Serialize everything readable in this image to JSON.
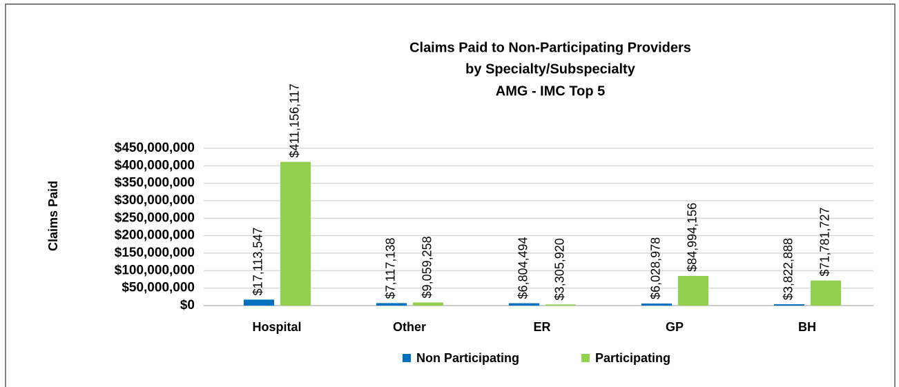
{
  "chart_data": {
    "type": "bar",
    "title": [
      "Claims Paid to Non-Participating Providers",
      "by Specialty/Subspecialty",
      "AMG - IMC Top 5"
    ],
    "y_label": "Claims Paid",
    "categories": [
      "Hospital",
      "Other",
      "ER",
      "GP",
      "BH"
    ],
    "series": [
      {
        "name": "Non Participating",
        "color": "#0070c0",
        "values": [
          17113547,
          7117138,
          6804494,
          6028978,
          3822888
        ],
        "value_labels": [
          "$17,113,547",
          "$7,117,138",
          "$6,804,494",
          "$6,028,978",
          "$3,822,888"
        ]
      },
      {
        "name": "Participating",
        "color": "#92d050",
        "values": [
          411156117,
          9059258,
          3305920,
          84994156,
          71781727
        ],
        "value_labels": [
          "$411,156,117",
          "$9,059,258",
          "$3,305,920",
          "$84,994,156",
          "$71,781,727"
        ]
      }
    ],
    "ylim": [
      0,
      450000000
    ],
    "yticks": [
      {
        "value": 0,
        "label": "$0"
      },
      {
        "value": 50000000,
        "label": "$50,000,000"
      },
      {
        "value": 100000000,
        "label": "$100,000,000"
      },
      {
        "value": 150000000,
        "label": "$150,000,000"
      },
      {
        "value": 200000000,
        "label": "$200,000,000"
      },
      {
        "value": 250000000,
        "label": "$250,000,000"
      },
      {
        "value": 300000000,
        "label": "$300,000,000"
      },
      {
        "value": 350000000,
        "label": "$350,000,000"
      },
      {
        "value": 400000000,
        "label": "$400,000,000"
      },
      {
        "value": 450000000,
        "label": "$450,000,000"
      }
    ],
    "grid": true,
    "legend": "bottom"
  }
}
